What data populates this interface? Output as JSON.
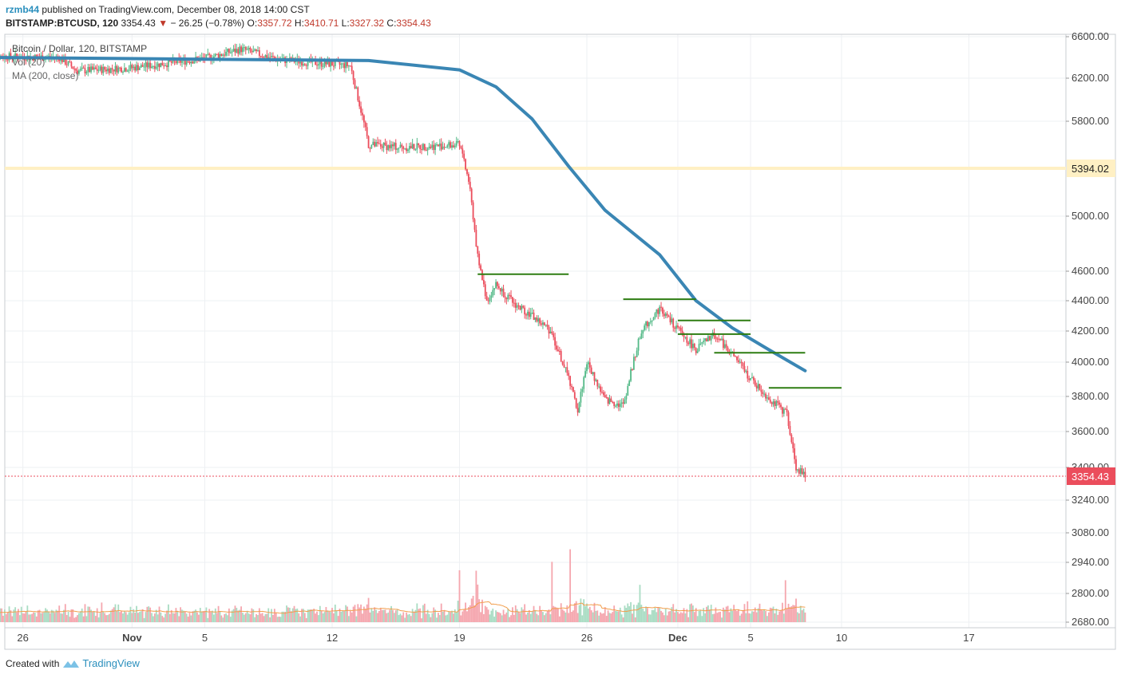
{
  "header": {
    "author": "rzmb44",
    "published_text": " published on TradingView.com, December 08, 2018 14:00 CST",
    "symbol": "BITSTAMP:BTCUSD, 120",
    "last": "3354.43",
    "change": "− 26.25 (−0.78%)",
    "o_label": "O:",
    "o_value": "3357.72",
    "h_label": "H:",
    "h_value": "3410.71",
    "l_label": "L:",
    "l_value": "3327.32",
    "c_label": "C:",
    "c_value": "3354.43"
  },
  "legend": {
    "title": "Bitcoin / Dollar, 120, BITSTAMP",
    "vol": "Vol (20)",
    "ma": "MA (200, close)"
  },
  "footer": {
    "created_with": "Created with",
    "brand": "TradingView"
  },
  "colors": {
    "up": "#53b987",
    "down": "#eb4d5c",
    "ma": "#3a86b4",
    "resistance": "#2e7d12",
    "hline": "#fff0c4",
    "price_tag": "#eb4d5c",
    "grid": "#eef0f3"
  },
  "chart_data": {
    "type": "candlestick",
    "y_axis_ticks": [
      "6600.00",
      "6200.00",
      "5800.00",
      "5000.00",
      "4600.00",
      "4400.00",
      "4200.00",
      "4000.00",
      "3800.00",
      "3600.00",
      "3400.00",
      "3240.00",
      "3080.00",
      "2940.00",
      "2800.00",
      "2680.00"
    ],
    "x_axis_ticks": [
      "26",
      "Nov",
      "5",
      "12",
      "19",
      "26",
      "Dec",
      "5",
      "10",
      "17"
    ],
    "x_axis_bold": [
      "Nov",
      "Dec"
    ],
    "price_labels": {
      "horizontal_line": "5394.02",
      "last_price": "3354.43"
    },
    "close_path": [
      [
        "2018-10-24",
        6410
      ],
      [
        "2018-10-28",
        6400
      ],
      [
        "2018-10-29",
        6270
      ],
      [
        "2018-11-01",
        6300
      ],
      [
        "2018-11-05",
        6390
      ],
      [
        "2018-11-07",
        6480
      ],
      [
        "2018-11-09",
        6380
      ],
      [
        "2018-11-13",
        6320
      ],
      [
        "2018-11-14",
        5600
      ],
      [
        "2018-11-16",
        5580
      ],
      [
        "2018-11-19",
        5600
      ],
      [
        "2018-11-19T12",
        5300
      ],
      [
        "2018-11-20",
        4700
      ],
      [
        "2018-11-20T12",
        4400
      ],
      [
        "2018-11-21",
        4510
      ],
      [
        "2018-11-22",
        4380
      ],
      [
        "2018-11-23",
        4300
      ],
      [
        "2018-11-24",
        4200
      ],
      [
        "2018-11-25",
        3900
      ],
      [
        "2018-11-25T12",
        3720
      ],
      [
        "2018-11-26",
        4000
      ],
      [
        "2018-11-27",
        3780
      ],
      [
        "2018-11-28",
        3750
      ],
      [
        "2018-11-29",
        4200
      ],
      [
        "2018-11-30",
        4350
      ],
      [
        "2018-12-01",
        4210
      ],
      [
        "2018-12-02",
        4080
      ],
      [
        "2018-12-03",
        4180
      ],
      [
        "2018-12-04",
        4050
      ],
      [
        "2018-12-05",
        3900
      ],
      [
        "2018-12-06",
        3790
      ],
      [
        "2018-12-07",
        3700
      ],
      [
        "2018-12-07T12",
        3400
      ],
      [
        "2018-12-08",
        3354.43
      ]
    ],
    "ma_200": [
      [
        "2018-10-24",
        6400
      ],
      [
        "2018-11-14",
        6370
      ],
      [
        "2018-11-19",
        6280
      ],
      [
        "2018-11-21",
        6120
      ],
      [
        "2018-11-23",
        5820
      ],
      [
        "2018-11-25",
        5420
      ],
      [
        "2018-11-27",
        5050
      ],
      [
        "2018-11-30",
        4720
      ],
      [
        "2018-12-02",
        4400
      ],
      [
        "2018-12-04",
        4220
      ],
      [
        "2018-12-06",
        4080
      ],
      [
        "2018-12-08",
        3950
      ]
    ],
    "resistance_levels": [
      {
        "from": "2018-11-20",
        "to": "2018-11-25",
        "value": 4580
      },
      {
        "from": "2018-11-28",
        "to": "2018-12-02",
        "value": 4410
      },
      {
        "from": "2018-12-01",
        "to": "2018-12-05",
        "value": 4270
      },
      {
        "from": "2018-12-01",
        "to": "2018-12-05",
        "value": 4180
      },
      {
        "from": "2018-12-03",
        "to": "2018-12-08",
        "value": 4060
      },
      {
        "from": "2018-12-06",
        "to": "2018-12-10",
        "value": 3850
      }
    ],
    "horizontal_line": 5394.02,
    "last_price": 3354.43,
    "volume_spikes": [
      [
        "2018-11-14",
        1.0
      ],
      [
        "2018-11-19",
        0.45
      ],
      [
        "2018-11-20",
        0.55
      ],
      [
        "2018-11-24",
        0.35
      ],
      [
        "2018-11-25",
        0.4
      ],
      [
        "2018-11-29",
        0.32
      ],
      [
        "2018-12-07",
        0.33
      ]
    ]
  }
}
